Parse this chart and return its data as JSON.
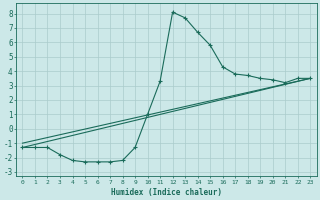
{
  "xlabel": "Humidex (Indice chaleur)",
  "bg_color": "#cce8e8",
  "grid_color": "#aacccc",
  "line_color": "#1a6b5a",
  "xlim": [
    -0.5,
    23.5
  ],
  "ylim": [
    -3.3,
    8.7
  ],
  "xticks": [
    0,
    1,
    2,
    3,
    4,
    5,
    6,
    7,
    8,
    9,
    10,
    11,
    12,
    13,
    14,
    15,
    16,
    17,
    18,
    19,
    20,
    21,
    22,
    23
  ],
  "yticks": [
    -3,
    -2,
    -1,
    0,
    1,
    2,
    3,
    4,
    5,
    6,
    7,
    8
  ],
  "series1_x": [
    0,
    1,
    2,
    3,
    4,
    5,
    6,
    7,
    8,
    9,
    10,
    11,
    12,
    13,
    14,
    15,
    16,
    17,
    18,
    19,
    20,
    21,
    22,
    23
  ],
  "series1_y": [
    -1.3,
    -1.3,
    -1.3,
    -1.8,
    -2.2,
    -2.3,
    -2.3,
    -2.3,
    -2.2,
    -1.3,
    1.0,
    3.3,
    8.1,
    7.7,
    6.7,
    5.8,
    4.3,
    3.8,
    3.7,
    3.5,
    3.4,
    3.2,
    3.5,
    3.5
  ],
  "series2_x": [
    0,
    23
  ],
  "series2_y": [
    -1.3,
    3.5
  ],
  "series3_x": [
    0,
    23
  ],
  "series3_y": [
    -1.0,
    3.5
  ]
}
